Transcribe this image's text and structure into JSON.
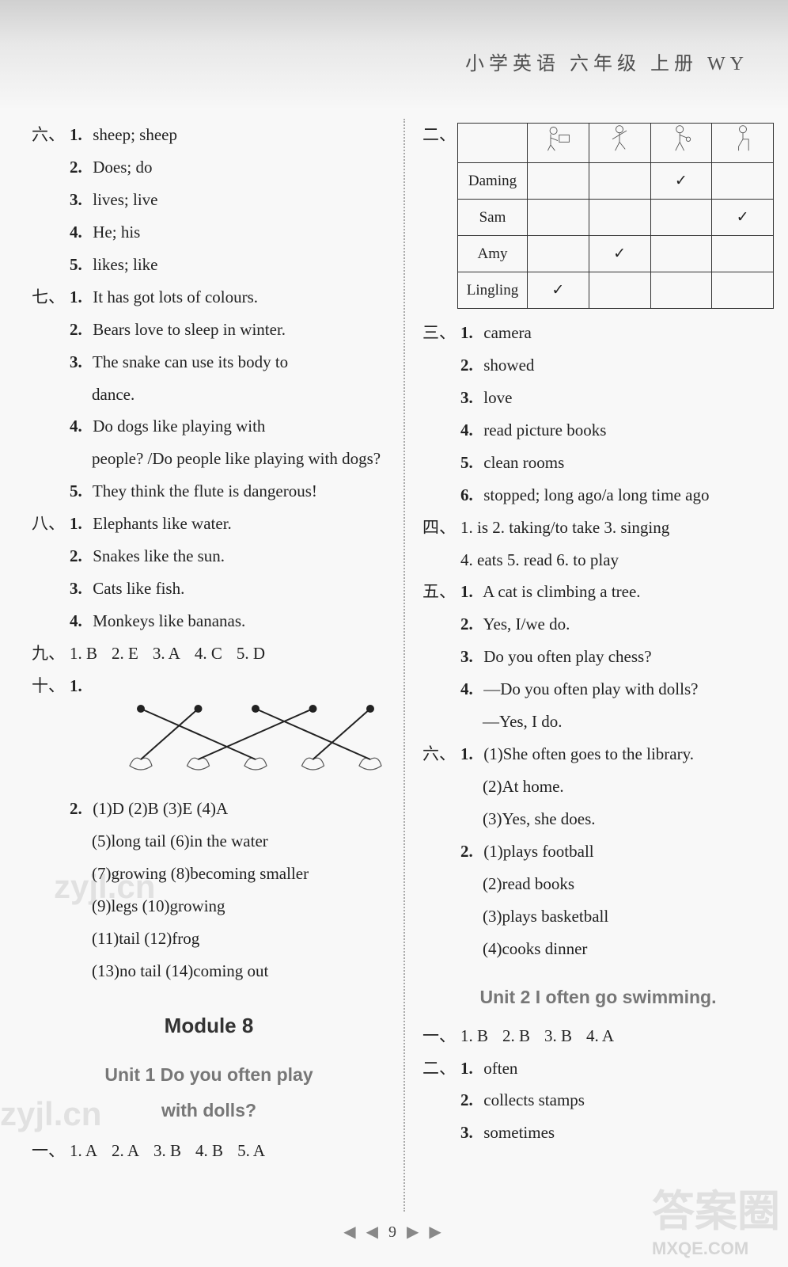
{
  "header": {
    "text": "小学英语  六年级  上册  WY"
  },
  "pager": {
    "left_arrows": "◀ ◀",
    "num": "9",
    "right_arrows": "▶ ▶"
  },
  "watermarks": {
    "w1": "zyjl.cn",
    "w2": "zyjl.cn",
    "br1": "答案圈",
    "br2": "MXQE.COM"
  },
  "left": {
    "sec6_label": "六、",
    "sec6": [
      {
        "n": "1.",
        "t": "sheep; sheep"
      },
      {
        "n": "2.",
        "t": "Does; do"
      },
      {
        "n": "3.",
        "t": "lives; live"
      },
      {
        "n": "4.",
        "t": "He; his"
      },
      {
        "n": "5.",
        "t": "likes; like"
      }
    ],
    "sec7_label": "七、",
    "sec7": [
      {
        "n": "1.",
        "t": "It has got lots of colours."
      },
      {
        "n": "2.",
        "t": "Bears love to sleep in winter."
      },
      {
        "n": "3.",
        "t": "The snake can use its body to",
        "cont": "dance."
      },
      {
        "n": "4.",
        "t": "Do dogs like playing with",
        "cont": "people? /Do people like playing with dogs?"
      },
      {
        "n": "5.",
        "t": "They think the flute is dangerous!"
      }
    ],
    "sec8_label": "八、",
    "sec8": [
      {
        "n": "1.",
        "t": "Elephants like water."
      },
      {
        "n": "2.",
        "t": "Snakes like the sun."
      },
      {
        "n": "3.",
        "t": "Cats like fish."
      },
      {
        "n": "4.",
        "t": "Monkeys like bananas."
      }
    ],
    "sec9_label": "九、",
    "sec9_items": [
      "1. B",
      "2. E",
      "3. A",
      "4. C",
      "5. D"
    ],
    "sec10_label": "十、",
    "sec10_1_n": "1.",
    "matching": {
      "connections": [
        [
          0,
          2
        ],
        [
          1,
          0
        ],
        [
          2,
          4
        ],
        [
          3,
          1
        ],
        [
          4,
          3
        ]
      ],
      "top_color": "#222",
      "line_color": "#222"
    },
    "sec10_2": {
      "n": "2.",
      "row1": "(1)D  (2)B  (3)E  (4)A",
      "rows": [
        "(5)long tail  (6)in the water",
        "(7)growing  (8)becoming smaller",
        "(9)legs  (10)growing",
        "(11)tail  (12)frog",
        "(13)no tail  (14)coming out"
      ]
    },
    "module_title": "Module 8",
    "unit1_title_l1": "Unit 1   Do you often play",
    "unit1_title_l2": "with dolls?",
    "m8u1_sec1_label": "一、",
    "m8u1_sec1_items": [
      "1. A",
      "2. A",
      "3. B",
      "4. B",
      "5. A"
    ]
  },
  "right": {
    "sec2_label": "二、",
    "table": {
      "icons": [
        "watch-tv-icon",
        "dance-icon",
        "play-doll-icon",
        "sit-icon"
      ],
      "rows": [
        {
          "name": "Daming",
          "checks": [
            "",
            "",
            "✓",
            ""
          ]
        },
        {
          "name": "Sam",
          "checks": [
            "",
            "",
            "",
            "✓"
          ]
        },
        {
          "name": "Amy",
          "checks": [
            "",
            "✓",
            "",
            ""
          ]
        },
        {
          "name": "Lingling",
          "checks": [
            "✓",
            "",
            "",
            ""
          ]
        }
      ]
    },
    "sec3_label": "三、",
    "sec3": [
      {
        "n": "1.",
        "t": "camera"
      },
      {
        "n": "2.",
        "t": "showed"
      },
      {
        "n": "3.",
        "t": "love"
      },
      {
        "n": "4.",
        "t": "read picture books"
      },
      {
        "n": "5.",
        "t": "clean rooms"
      },
      {
        "n": "6.",
        "t": "stopped; long ago/a long time ago"
      }
    ],
    "sec4_label": "四、",
    "sec4_row1": "1. is  2. taking/to take  3. singing",
    "sec4_row2": "4. eats  5. read  6. to play",
    "sec5_label": "五、",
    "sec5": [
      {
        "n": "1.",
        "t": "A cat is climbing a tree."
      },
      {
        "n": "2.",
        "t": "Yes, I/we do."
      },
      {
        "n": "3.",
        "t": "Do you often play chess?"
      },
      {
        "n": "4.",
        "t": "—Do you often play with dolls?",
        "cont": "—Yes, I do."
      }
    ],
    "sec6_label": "六、",
    "sec6_1_n": "1.",
    "sec6_1": [
      "(1)She often goes to the library.",
      "(2)At home.",
      "(3)Yes, she does."
    ],
    "sec6_2_n": "2.",
    "sec6_2": [
      "(1)plays football",
      "(2)read books",
      "(3)plays basketball",
      "(4)cooks dinner"
    ],
    "unit2_title": "Unit 2   I often go swimming.",
    "u2_sec1_label": "一、",
    "u2_sec1_items": [
      "1. B",
      "2. B",
      "3. B",
      "4. A"
    ],
    "u2_sec2_label": "二、",
    "u2_sec2": [
      {
        "n": "1.",
        "t": "often"
      },
      {
        "n": "2.",
        "t": "collects stamps"
      },
      {
        "n": "3.",
        "t": "sometimes"
      }
    ]
  }
}
